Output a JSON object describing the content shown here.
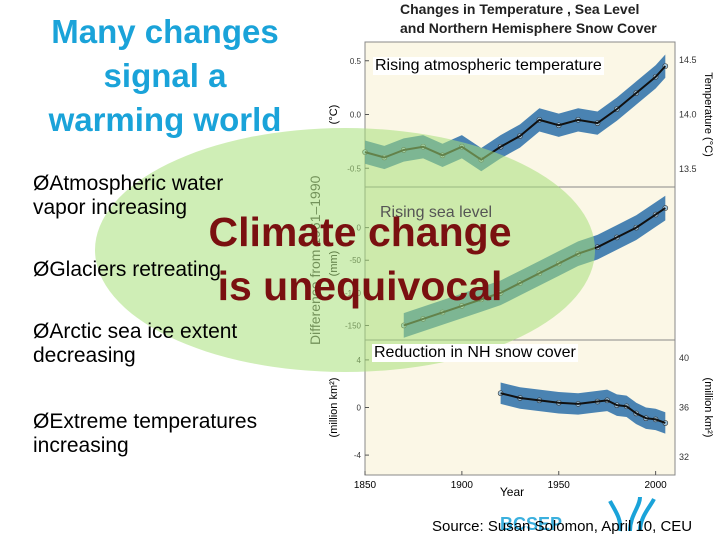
{
  "slide": {
    "title_lines": [
      "Many changes",
      "signal a",
      "warming world"
    ],
    "bullets": [
      {
        "arrow": "Ø",
        "lines": [
          "Atmospheric water",
          "vapor increasing"
        ]
      },
      {
        "arrow": "Ø",
        "lines": [
          "Glaciers retreating"
        ]
      },
      {
        "arrow": "Ø",
        "lines": [
          "Arctic sea ice extent",
          "decreasing"
        ]
      },
      {
        "arrow": "Ø",
        "lines": [
          "Extreme temperatures",
          "increasing"
        ]
      }
    ],
    "overlay_lines": [
      "Climate change",
      "is unequivocal"
    ],
    "source": "Source: Susan Solomon, April 10, CEU",
    "logo_text": "BCSEP"
  },
  "figure": {
    "title_lines": [
      "Changes in Temperature , Sea Level",
      "and Northern Hemisphere Snow Cover"
    ],
    "left_axis_label": "Difference from 1961–1990",
    "xlabel": "Year",
    "x_ticks": [
      1850,
      1900,
      1950,
      2000
    ],
    "panels": [
      {
        "label": "Rising atmospheric temperature",
        "left_unit": "(°C)",
        "left_ticks": [
          "0.5",
          "0.0",
          "-0.5"
        ],
        "right_unit": "Temperature (°C)",
        "right_ticks": [
          "14.5",
          "14.0",
          "13.5"
        ]
      },
      {
        "label": "Rising sea level",
        "left_unit": "(mm)",
        "left_ticks": [
          "0",
          "-50",
          "-100",
          "-150"
        ],
        "right_unit": "",
        "right_ticks": []
      },
      {
        "label": "Reduction in NH snow cover",
        "left_unit": "(million km²)",
        "left_ticks": [
          "4",
          "0",
          "-4"
        ],
        "right_unit": "(million km²)",
        "right_ticks": [
          "40",
          "36",
          "32"
        ]
      }
    ]
  },
  "chart_data": [
    {
      "type": "line",
      "title": "Rising atmospheric temperature",
      "xlabel": "Year",
      "ylabel": "(°C)",
      "xlim": [
        1850,
        2010
      ],
      "ylim": [
        -0.6,
        0.6
      ],
      "series": [
        {
          "name": "",
          "x": [
            1850,
            1860,
            1870,
            1880,
            1890,
            1900,
            1910,
            1920,
            1930,
            1940,
            1950,
            1960,
            1970,
            1980,
            1990,
            2000,
            2005
          ],
          "y": [
            -0.35,
            -0.4,
            -0.33,
            -0.3,
            -0.38,
            -0.3,
            -0.42,
            -0.3,
            -0.2,
            -0.05,
            -0.1,
            -0.05,
            -0.08,
            0.05,
            0.2,
            0.35,
            0.45
          ]
        }
      ]
    },
    {
      "type": "line",
      "title": "Rising sea level",
      "xlabel": "Year",
      "ylabel": "(mm)",
      "xlim": [
        1850,
        2010
      ],
      "ylim": [
        -160,
        50
      ],
      "series": [
        {
          "name": "",
          "x": [
            1870,
            1880,
            1890,
            1900,
            1910,
            1920,
            1930,
            1940,
            1950,
            1960,
            1970,
            1980,
            1990,
            2000,
            2005
          ],
          "y": [
            -150,
            -140,
            -130,
            -120,
            -110,
            -100,
            -85,
            -70,
            -55,
            -40,
            -30,
            -15,
            0,
            20,
            30
          ]
        }
      ]
    },
    {
      "type": "line",
      "title": "Reduction in NH snow cover",
      "xlabel": "Year",
      "ylabel": "(million km²)",
      "xlim": [
        1850,
        2010
      ],
      "ylim": [
        -5,
        5
      ],
      "series": [
        {
          "name": "",
          "x": [
            1920,
            1930,
            1940,
            1950,
            1960,
            1970,
            1975,
            1980,
            1985,
            1990,
            1995,
            2000,
            2005
          ],
          "y": [
            1.2,
            0.8,
            0.6,
            0.4,
            0.3,
            0.5,
            0.6,
            0.2,
            0.1,
            -0.5,
            -0.9,
            -1.0,
            -1.3
          ]
        }
      ]
    }
  ]
}
